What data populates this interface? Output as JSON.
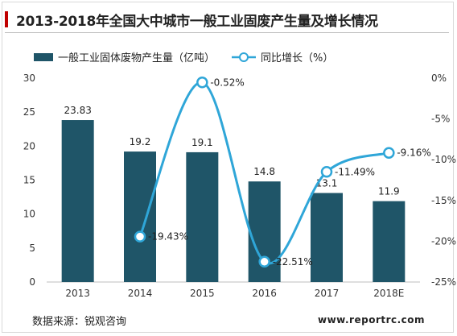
{
  "title": "2013-2018年全国大中城市一般工业固废产生量及增长情况",
  "source": "数据来源：锐观咨询",
  "site": "www.reportrc.com",
  "colors": {
    "bar": "#1f5568",
    "line": "#2fa6d8",
    "title_accent": "#c00000"
  },
  "chart_data": {
    "type": "bar",
    "categories": [
      "2013",
      "2014",
      "2015",
      "2016",
      "2017",
      "2018E"
    ],
    "series": [
      {
        "name": "一般工业固体废物产生量（亿吨）",
        "kind": "bar",
        "axis": "left",
        "values": [
          23.83,
          19.2,
          19.1,
          14.8,
          13.1,
          11.9
        ],
        "labels": [
          "23.83",
          "19.2",
          "19.1",
          "14.8",
          "13.1",
          "11.9"
        ]
      },
      {
        "name": "同比增长（%）",
        "kind": "line",
        "axis": "right",
        "smooth": true,
        "values": [
          null,
          -19.43,
          -0.52,
          -22.51,
          -11.49,
          -9.16
        ],
        "labels": [
          "",
          "-19.43%",
          "-0.52%",
          "-22.51%",
          "-11.49%",
          "-9.16%"
        ]
      }
    ],
    "y_left": {
      "min": 0,
      "max": 30,
      "ticks": [
        "0",
        "5",
        "10",
        "15",
        "20",
        "25",
        "30"
      ]
    },
    "y_right": {
      "min": -25,
      "max": 0,
      "ticks": [
        "-25%",
        "-20%",
        "-15%",
        "-10%",
        "-5%",
        "0%"
      ]
    },
    "legend_position": "top",
    "grid": false
  }
}
